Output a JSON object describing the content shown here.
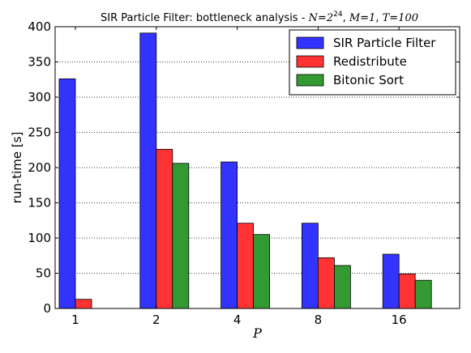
{
  "chart_data": {
    "type": "bar",
    "title_prefix": "SIR Particle Filter: bottleneck analysis - ",
    "title_params": [
      {
        "var": "N",
        "base": "2",
        "exp": "24"
      },
      {
        "var": "M",
        "value": "1"
      },
      {
        "var": "T",
        "value": "100"
      }
    ],
    "xlabel": "P",
    "ylabel": "run-time [s]",
    "categories": [
      "1",
      "2",
      "4",
      "8",
      "16"
    ],
    "ylim": [
      0,
      400
    ],
    "yticks": [
      0,
      50,
      100,
      150,
      200,
      250,
      300,
      350,
      400
    ],
    "grid": true,
    "legend_position": "top-right",
    "series": [
      {
        "name": "SIR Particle Filter",
        "color": "#3333ff",
        "values": [
          326,
          391,
          208,
          121,
          77
        ]
      },
      {
        "name": "Redistribute",
        "color": "#ff3333",
        "values": [
          13,
          226,
          121,
          72,
          49
        ]
      },
      {
        "name": "Bitonic Sort",
        "color": "#339933",
        "values": [
          0,
          206,
          105,
          61,
          40
        ]
      }
    ]
  }
}
